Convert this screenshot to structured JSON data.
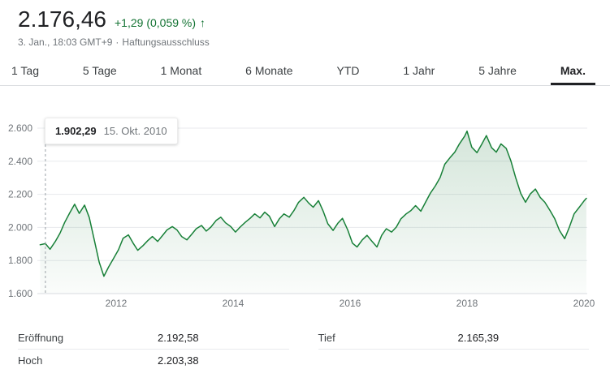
{
  "header": {
    "price": "2.176,46",
    "change": "+1,29 (0,059 %)",
    "change_arrow": "↑",
    "timestamp": "3. Jan., 18:03 GMT+9",
    "separator": "·",
    "disclaimer": "Haftungsausschluss"
  },
  "tabs": [
    {
      "label": "1 Tag",
      "active": false
    },
    {
      "label": "5 Tage",
      "active": false
    },
    {
      "label": "1 Monat",
      "active": false
    },
    {
      "label": "6 Monate",
      "active": false
    },
    {
      "label": "YTD",
      "active": false
    },
    {
      "label": "1 Jahr",
      "active": false
    },
    {
      "label": "5 Jahre",
      "active": false
    },
    {
      "label": "Max.",
      "active": true
    }
  ],
  "stats": {
    "left": [
      {
        "label": "Eröffnung",
        "value": "2.192,58"
      },
      {
        "label": "Hoch",
        "value": "2.203,38"
      }
    ],
    "right": [
      {
        "label": "Tief",
        "value": "2.165,39"
      }
    ]
  },
  "colors": {
    "accent_green": "#137333",
    "line_green": "#188038",
    "gridline": "#e8eaed",
    "axis_text": "#70757a"
  },
  "chart_data": {
    "type": "line",
    "title": "",
    "xlabel": "",
    "ylabel": "",
    "xlim": [
      2010.7,
      2020.06
    ],
    "ylim": [
      1600,
      2650
    ],
    "grid": true,
    "legend": "none",
    "line_color": "#188038",
    "area_fill": true,
    "yticks": [
      {
        "value": 1600,
        "label": "1.600"
      },
      {
        "value": 1800,
        "label": "1.800"
      },
      {
        "value": 2000,
        "label": "2.000"
      },
      {
        "value": 2200,
        "label": "2.200"
      },
      {
        "value": 2400,
        "label": "2.400"
      },
      {
        "value": 2600,
        "label": "2.600"
      }
    ],
    "xticks": [
      {
        "value": 2012,
        "label": "2012"
      },
      {
        "value": 2014,
        "label": "2014"
      },
      {
        "value": 2016,
        "label": "2016"
      },
      {
        "value": 2018,
        "label": "2018"
      },
      {
        "value": 2020,
        "label": "2020"
      }
    ],
    "cursor": {
      "x": 2010.79,
      "value": 1902.29,
      "value_label": "1.902,29",
      "date_label": "15. Okt. 2010"
    },
    "x": [
      2010.7,
      2010.79,
      2010.87,
      2010.96,
      2011.04,
      2011.12,
      2011.21,
      2011.29,
      2011.37,
      2011.46,
      2011.54,
      2011.62,
      2011.71,
      2011.79,
      2011.87,
      2011.96,
      2012.04,
      2012.12,
      2012.21,
      2012.29,
      2012.37,
      2012.46,
      2012.54,
      2012.62,
      2012.71,
      2012.79,
      2012.87,
      2012.96,
      2013.04,
      2013.12,
      2013.21,
      2013.29,
      2013.37,
      2013.46,
      2013.54,
      2013.62,
      2013.71,
      2013.79,
      2013.87,
      2013.96,
      2014.04,
      2014.12,
      2014.21,
      2014.29,
      2014.37,
      2014.46,
      2014.54,
      2014.62,
      2014.71,
      2014.79,
      2014.87,
      2014.96,
      2015.04,
      2015.12,
      2015.21,
      2015.29,
      2015.37,
      2015.46,
      2015.54,
      2015.62,
      2015.71,
      2015.79,
      2015.87,
      2015.96,
      2016.04,
      2016.12,
      2016.21,
      2016.29,
      2016.37,
      2016.46,
      2016.54,
      2016.62,
      2016.71,
      2016.79,
      2016.87,
      2016.96,
      2017.04,
      2017.12,
      2017.21,
      2017.29,
      2017.37,
      2017.46,
      2017.54,
      2017.62,
      2017.71,
      2017.79,
      2017.87,
      2017.96,
      2018.0,
      2018.08,
      2018.17,
      2018.25,
      2018.33,
      2018.42,
      2018.5,
      2018.58,
      2018.67,
      2018.75,
      2018.83,
      2018.92,
      2019.0,
      2019.08,
      2019.17,
      2019.25,
      2019.33,
      2019.42,
      2019.5,
      2019.58,
      2019.67,
      2019.75,
      2019.83,
      2019.92,
      2020.0,
      2020.04
    ],
    "values": [
      1895,
      1902,
      1868,
      1915,
      1965,
      2030,
      2090,
      2140,
      2085,
      2135,
      2060,
      1935,
      1790,
      1705,
      1760,
      1815,
      1865,
      1935,
      1955,
      1905,
      1862,
      1890,
      1920,
      1945,
      1915,
      1950,
      1985,
      2005,
      1985,
      1945,
      1925,
      1958,
      1992,
      2012,
      1978,
      2002,
      2042,
      2062,
      2028,
      2005,
      1972,
      2002,
      2032,
      2055,
      2082,
      2058,
      2092,
      2068,
      2005,
      2052,
      2082,
      2062,
      2102,
      2152,
      2182,
      2148,
      2122,
      2162,
      2098,
      2022,
      1982,
      2025,
      2055,
      1985,
      1905,
      1882,
      1925,
      1952,
      1918,
      1882,
      1952,
      1992,
      1972,
      2002,
      2052,
      2082,
      2102,
      2132,
      2098,
      2152,
      2205,
      2252,
      2302,
      2382,
      2422,
      2455,
      2505,
      2552,
      2582,
      2485,
      2452,
      2502,
      2555,
      2482,
      2455,
      2505,
      2478,
      2402,
      2302,
      2205,
      2152,
      2202,
      2232,
      2182,
      2152,
      2102,
      2052,
      1982,
      1932,
      2002,
      2082,
      2122,
      2160,
      2176
    ]
  }
}
